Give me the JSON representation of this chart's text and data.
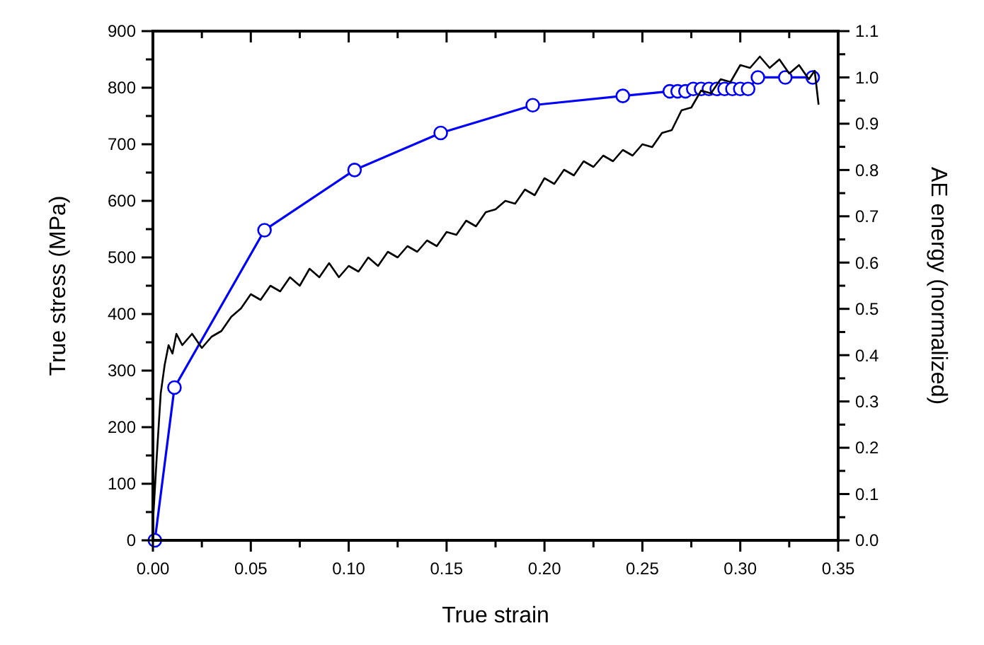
{
  "chart_data": {
    "type": "line",
    "xlabel": "True strain",
    "ylabel": "True stress (MPa)",
    "y2label": "AE energy (normalized)",
    "xlim": [
      0,
      0.35
    ],
    "xticks": [
      {
        "value": 0,
        "label": "0.00"
      },
      {
        "value": 0.025,
        "label": null
      },
      {
        "value": 0.05,
        "label": "0.05"
      },
      {
        "value": 0.075,
        "label": null
      },
      {
        "value": 0.1,
        "label": "0.10"
      },
      {
        "value": 0.125,
        "label": null
      },
      {
        "value": 0.15,
        "label": "0.15"
      },
      {
        "value": 0.175,
        "label": null
      },
      {
        "value": 0.2,
        "label": "0.20"
      },
      {
        "value": 0.225,
        "label": null
      },
      {
        "value": 0.25,
        "label": "0.25"
      },
      {
        "value": 0.275,
        "label": null
      },
      {
        "value": 0.3,
        "label": "0.30"
      },
      {
        "value": 0.325,
        "label": null
      },
      {
        "value": 0.35,
        "label": "0.35"
      }
    ],
    "ylim": [
      0,
      900
    ],
    "yticks": [
      0,
      {
        "value": 50,
        "label": null
      },
      100,
      {
        "value": 150,
        "label": null
      },
      200,
      {
        "value": 250,
        "label": null
      },
      300,
      {
        "value": 350,
        "label": null
      },
      400,
      {
        "value": 450,
        "label": null
      },
      500,
      {
        "value": 550,
        "label": null
      },
      600,
      {
        "value": 650,
        "label": null
      },
      700,
      {
        "value": 750,
        "label": null
      },
      800,
      {
        "value": 850,
        "label": null
      },
      900
    ],
    "y2lim": [
      0,
      1.1
    ],
    "y2ticks": [
      {
        "value": 0,
        "label": "0.0"
      },
      {
        "value": 0.05,
        "label": null
      },
      {
        "value": 0.1,
        "label": "0.1"
      },
      {
        "value": 0.15,
        "label": null
      },
      {
        "value": 0.2,
        "label": "0.2"
      },
      {
        "value": 0.25,
        "label": null
      },
      {
        "value": 0.3,
        "label": "0.3"
      },
      {
        "value": 0.35,
        "label": null
      },
      {
        "value": 0.4,
        "label": "0.4"
      },
      {
        "value": 0.45,
        "label": null
      },
      {
        "value": 0.5,
        "label": "0.5"
      },
      {
        "value": 0.55,
        "label": null
      },
      {
        "value": 0.6,
        "label": "0.6"
      },
      {
        "value": 0.65,
        "label": null
      },
      {
        "value": 0.7,
        "label": "0.7"
      },
      {
        "value": 0.75,
        "label": null
      },
      {
        "value": 0.8,
        "label": "0.8"
      },
      {
        "value": 0.85,
        "label": null
      },
      {
        "value": 0.9,
        "label": "0.9"
      },
      {
        "value": 0.95,
        "label": null
      },
      {
        "value": 1.0,
        "label": "1.0"
      },
      {
        "value": 1.05,
        "label": null
      },
      {
        "value": 1.1,
        "label": "1.1"
      }
    ],
    "grid": false,
    "series": [
      {
        "color": "#000000",
        "marker": "none",
        "line_style": "solid",
        "x": [
          0,
          0.002,
          0.004,
          0.006,
          0.008,
          0.01,
          0.012,
          0.015,
          0.02,
          0.025,
          0.03,
          0.035,
          0.04,
          0.045,
          0.05,
          0.055,
          0.06,
          0.065,
          0.07,
          0.075,
          0.08,
          0.085,
          0.09,
          0.095,
          0.1,
          0.105,
          0.11,
          0.115,
          0.12,
          0.125,
          0.13,
          0.135,
          0.14,
          0.145,
          0.15,
          0.155,
          0.16,
          0.165,
          0.17,
          0.175,
          0.18,
          0.185,
          0.19,
          0.195,
          0.2,
          0.205,
          0.21,
          0.215,
          0.22,
          0.225,
          0.23,
          0.235,
          0.24,
          0.245,
          0.25,
          0.255,
          0.26,
          0.265,
          0.27,
          0.275,
          0.28,
          0.285,
          0.29,
          0.295,
          0.3,
          0.305,
          0.31,
          0.315,
          0.32,
          0.325,
          0.33,
          0.335,
          0.338,
          0.34
        ],
        "values": [
          30,
          150,
          260,
          310,
          345,
          330,
          365,
          345,
          365,
          340,
          360,
          370,
          395,
          410,
          435,
          425,
          450,
          440,
          465,
          450,
          480,
          465,
          490,
          465,
          485,
          475,
          500,
          485,
          510,
          500,
          520,
          510,
          530,
          520,
          545,
          540,
          565,
          555,
          580,
          585,
          600,
          595,
          620,
          610,
          640,
          630,
          655,
          645,
          670,
          660,
          680,
          670,
          690,
          680,
          700,
          695,
          720,
          725,
          760,
          765,
          795,
          790,
          815,
          810,
          840,
          835,
          855,
          835,
          850,
          825,
          840,
          815,
          830,
          770
        ]
      },
      {
        "color": "#0000ff",
        "marker": "circle",
        "line_style": "solid",
        "axis": "y2",
        "x": [
          0.001,
          0.011,
          0.057,
          0.103,
          0.147,
          0.194,
          0.24,
          0.264,
          0.268,
          0.272,
          0.276,
          0.28,
          0.284,
          0.288,
          0.292,
          0.296,
          0.3,
          0.304,
          0.309,
          0.323,
          0.337
        ],
        "values": [
          0.0,
          0.33,
          0.67,
          0.8,
          0.88,
          0.94,
          0.96,
          0.97,
          0.97,
          0.97,
          0.975,
          0.975,
          0.975,
          0.975,
          0.975,
          0.975,
          0.975,
          0.975,
          1.0,
          1.0,
          1.0
        ]
      }
    ]
  }
}
